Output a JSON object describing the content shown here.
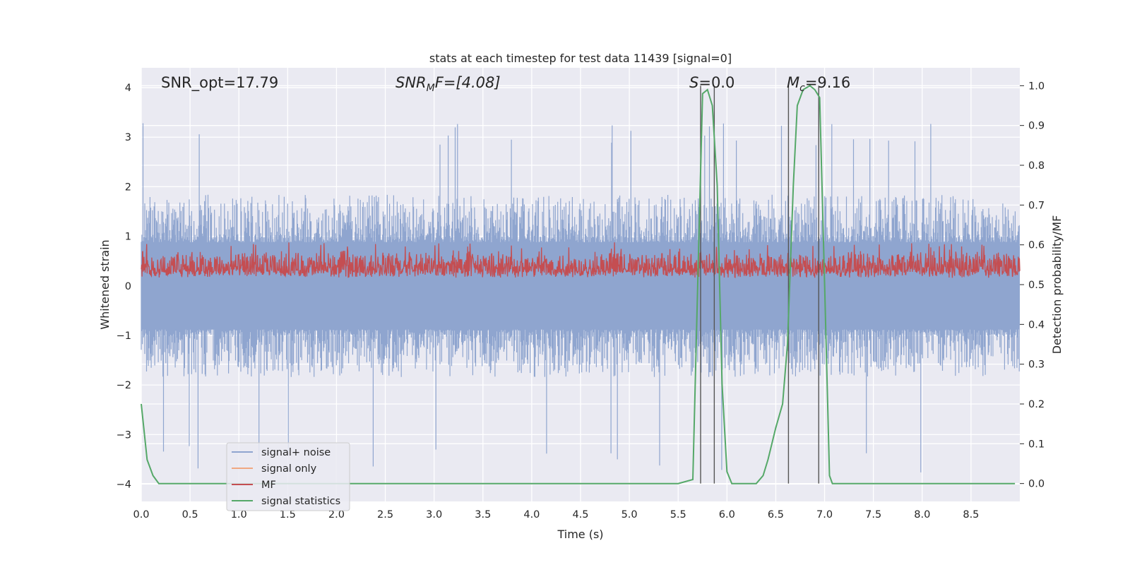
{
  "chart_data": {
    "type": "line",
    "title": "stats at each timestep for test data 11439 [signal=0]",
    "xlabel": "Time (s)",
    "ylabel_left": "Whitened strain",
    "ylabel_right": "Detection probability/MF",
    "xlim": [
      0.0,
      9.0
    ],
    "ylim_left": [
      -4.35,
      4.4
    ],
    "ylim_right": [
      -0.045,
      1.045
    ],
    "x_ticks": [
      "0.0",
      "0.5",
      "1.0",
      "1.5",
      "2.0",
      "2.5",
      "3.0",
      "3.5",
      "4.0",
      "4.5",
      "5.0",
      "5.5",
      "6.0",
      "6.5",
      "7.0",
      "7.5",
      "8.0",
      "8.5"
    ],
    "y_ticks_left": [
      "4",
      "3",
      "2",
      "1",
      "0",
      "−1",
      "−2",
      "−3",
      "−4"
    ],
    "y_ticks_right": [
      "1.0",
      "0.9",
      "0.8",
      "0.7",
      "0.6",
      "0.5",
      "0.4",
      "0.3",
      "0.2",
      "0.1",
      "0.0"
    ],
    "grid": true,
    "legend_position": "lower-left",
    "annotations": {
      "snr_opt": "SNR_opt=17.79",
      "snr_mf_main": "SNR",
      "snr_mf_sub": "M",
      "snr_mf_rest": "F=[4.08]",
      "s_main": "S",
      "s_rest": "=0.0",
      "mc_main": "M",
      "mc_sub": "c",
      "mc_rest": "=9.16"
    },
    "series": [
      {
        "name": "signal+ noise",
        "color": "#8fa5cf",
        "envelope": {
          "upper_typical": 1.6,
          "lower_typical": -1.6,
          "max": 3.3,
          "min": -3.8
        }
      },
      {
        "name": "signal only",
        "color": "#f0a882"
      },
      {
        "name": "MF",
        "color": "#c44e52",
        "axis": "left",
        "range": [
          0.05,
          0.8
        ]
      },
      {
        "name": "signal statistics",
        "color": "#55a868",
        "axis": "right",
        "x": [
          0.0,
          0.06,
          0.12,
          0.18,
          0.24,
          0.35,
          0.42,
          0.5,
          0.6,
          1.0,
          2.0,
          3.0,
          4.0,
          5.0,
          5.5,
          5.65,
          5.7,
          5.75,
          5.8,
          5.85,
          5.9,
          5.95,
          6.0,
          6.05,
          6.1,
          6.2,
          6.3,
          6.37,
          6.42,
          6.5,
          6.57,
          6.62,
          6.68,
          6.72,
          6.78,
          6.85,
          6.9,
          6.95,
          7.0,
          7.05,
          7.08,
          7.15,
          7.5,
          8.0,
          8.5,
          8.95
        ],
        "y": [
          0.2,
          0.06,
          0.02,
          0.0,
          0.0,
          0.0,
          0.0,
          0.0,
          0.0,
          0.0,
          0.0,
          0.0,
          0.0,
          0.0,
          0.0,
          0.01,
          0.5,
          0.98,
          0.99,
          0.95,
          0.75,
          0.25,
          0.03,
          0.0,
          0.0,
          0.0,
          0.0,
          0.02,
          0.06,
          0.14,
          0.2,
          0.35,
          0.75,
          0.95,
          0.99,
          1.0,
          0.99,
          0.97,
          0.5,
          0.02,
          0.0,
          0.0,
          0.0,
          0.0,
          0.0,
          0.0
        ]
      }
    ],
    "vertical_markers_s": [
      5.73,
      5.87,
      6.63,
      6.94
    ]
  }
}
